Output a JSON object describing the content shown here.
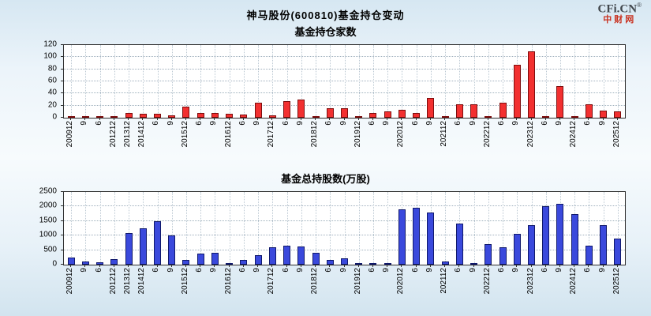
{
  "header": {
    "title": "神马股份(600810)基金持仓变动",
    "logo": {
      "brand": "CFi.CN",
      "reg": "®",
      "sub": "中财网"
    }
  },
  "chart_data": [
    {
      "type": "bar",
      "title": "基金持仓家数",
      "categories": [
        "200912",
        "9",
        "6",
        "201212",
        "201312",
        "201412",
        "6",
        "9",
        "201512",
        "6",
        "9",
        "201612",
        "6",
        "9",
        "201712",
        "6",
        "9",
        "201812",
        "6",
        "9",
        "201912",
        "6",
        "9",
        "202012",
        "6",
        "9",
        "202112",
        "6",
        "9",
        "202212",
        "6",
        "9",
        "202312",
        "6",
        "9",
        "202412",
        "6",
        "9",
        "202512"
      ],
      "values": [
        2,
        1,
        1,
        2,
        8,
        6,
        7,
        4,
        18,
        8,
        8,
        6,
        5,
        25,
        4,
        28,
        30,
        2,
        15,
        15,
        2,
        8,
        10,
        13,
        8,
        33,
        3,
        22,
        22,
        2,
        25,
        87,
        110,
        3,
        52,
        3,
        22,
        12,
        10
      ],
      "xlabel": "",
      "ylabel": "",
      "ylim": [
        0,
        120
      ],
      "yticks": [
        0,
        20,
        40,
        60,
        80,
        100,
        120
      ],
      "bar_color": "#f23030",
      "bar_border": "#7d0d0d",
      "grid": true,
      "legend": "none",
      "x_tick_rotation": 90
    },
    {
      "type": "bar",
      "title": "基金总持股数(万股)",
      "categories": [
        "200912",
        "9",
        "6",
        "201212",
        "201312",
        "201412",
        "6",
        "9",
        "201512",
        "6",
        "9",
        "201612",
        "6",
        "9",
        "201712",
        "6",
        "9",
        "201812",
        "6",
        "9",
        "201912",
        "6",
        "9",
        "202012",
        "6",
        "9",
        "202112",
        "6",
        "9",
        "202212",
        "6",
        "9",
        "202312",
        "6",
        "9",
        "202412",
        "6",
        "9",
        "202512"
      ],
      "values": [
        250,
        100,
        90,
        200,
        1100,
        1250,
        1500,
        1000,
        160,
        380,
        420,
        60,
        150,
        320,
        600,
        650,
        620,
        400,
        150,
        220,
        60,
        40,
        60,
        1900,
        1950,
        1800,
        120,
        1400,
        60,
        700,
        600,
        1050,
        1350,
        2000,
        2100,
        1750,
        650,
        1350,
        900
      ],
      "xlabel": "",
      "ylabel": "",
      "ylim": [
        0,
        2500
      ],
      "yticks": [
        0,
        500,
        1000,
        1500,
        2000,
        2500
      ],
      "bar_color": "#3a49dc",
      "bar_border": "#10196b",
      "grid": true,
      "legend": "none",
      "x_tick_rotation": 90
    }
  ]
}
